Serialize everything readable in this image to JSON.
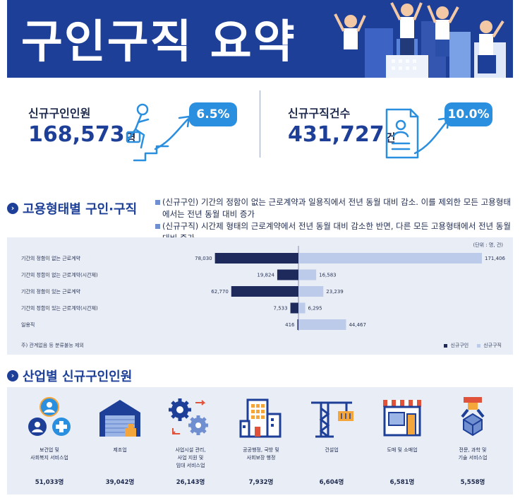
{
  "header": {
    "title": "구인구직 요약"
  },
  "kpis": [
    {
      "label": "신규구인인원",
      "value": "168,573",
      "unit": "명",
      "change": "6.5%"
    },
    {
      "label": "신규구직건수",
      "value": "431,727",
      "unit": "건",
      "change": "10.0%"
    }
  ],
  "employment_section": {
    "title": "고용형태별 구인·구직",
    "notes": [
      "(신규구인) 기간의 정함이 없는 근로계약과 일용직에서 전년 동월 대비 감소. 이를 제외한 모든 고용형태에서는 전년 동월 대비 증가",
      "(신규구직) 시간제 형태의 근로계약에서 전년 동월 대비 감소한 반면, 다른 모든 고용형태에서 전년 동월 대비 증가"
    ],
    "unit_note": "(단위 : 명, 건)",
    "footnote": "주) 관계없음 등 분류불능 제외"
  },
  "chart_data": {
    "type": "bar",
    "orientation": "horizontal-diverging",
    "categories": [
      "기간의 정함이 없는 근로계약",
      "기간의 정함이 없는 근로계약(시간제)",
      "기간의 정함이 있는 근로계약",
      "기간의 정함이 있는 근로계약(시간제)",
      "일용직"
    ],
    "series": [
      {
        "name": "신규구인",
        "color": "#1f2a5c",
        "values": [
          78030,
          19824,
          62770,
          7533,
          416
        ],
        "labels": [
          "78,030",
          "19,824",
          "62,770",
          "7,533",
          "416"
        ]
      },
      {
        "name": "신규구직",
        "color": "#bccbe9",
        "values": [
          171406,
          16583,
          23239,
          6295,
          44467
        ],
        "labels": [
          "171,406",
          "16,583",
          "23,239",
          "6,295",
          "44,467"
        ]
      }
    ],
    "legend_position": "bottom-right",
    "grid": false
  },
  "industry_section": {
    "title": "산업별 신규구인인원",
    "items": [
      {
        "name": "보건업 및\n사회복지 서비스업",
        "value": "51,033명",
        "icon": "healthcare-people-icon"
      },
      {
        "name": "제조업",
        "value": "39,042명",
        "icon": "factory-warehouse-icon"
      },
      {
        "name": "사업시설 관리,\n사업 지원 및\n임대 서비스업",
        "value": "26,143명",
        "icon": "gears-icon"
      },
      {
        "name": "공공행정, 국방 및\n사회보장 행정",
        "value": "7,932명",
        "icon": "public-building-icon"
      },
      {
        "name": "건설업",
        "value": "6,604명",
        "icon": "crane-icon"
      },
      {
        "name": "도매 및 소매업",
        "value": "6,581명",
        "icon": "store-icon"
      },
      {
        "name": "전문, 과학 및\n기술 서비스업",
        "value": "5,558명",
        "icon": "robot-arm-icon"
      }
    ]
  },
  "colors": {
    "brand": "#1d3f98",
    "accent": "#2b8fe0",
    "dark_bar": "#1f2a5c",
    "light_bar": "#bccbe9"
  }
}
